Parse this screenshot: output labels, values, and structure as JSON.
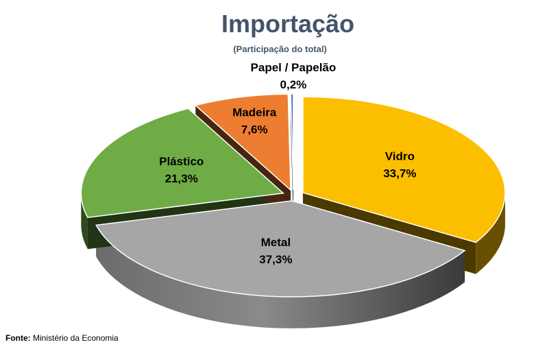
{
  "chart_data": {
    "type": "pie",
    "title": "Importação",
    "subtitle": "(Participação do total)",
    "unit": "%",
    "slices": [
      {
        "name": "Vidro",
        "value": 33.7,
        "label": "33,7%",
        "color": "#fbbf00"
      },
      {
        "name": "Metal",
        "value": 37.3,
        "label": "37,3%",
        "color": "#a6a6a6"
      },
      {
        "name": "Plástico",
        "value": 21.3,
        "label": "21,3%",
        "color": "#6fac46"
      },
      {
        "name": "Madeira",
        "value": 7.6,
        "label": "7,6%",
        "color": "#ed7d31"
      },
      {
        "name": "Papel / Papelão",
        "value": 0.2,
        "label": "0,2%",
        "color": "#4472c4"
      }
    ],
    "style": "3d-exploded"
  },
  "footer": {
    "source_label": "Fonte:",
    "source_text": "Ministério da Economia"
  }
}
